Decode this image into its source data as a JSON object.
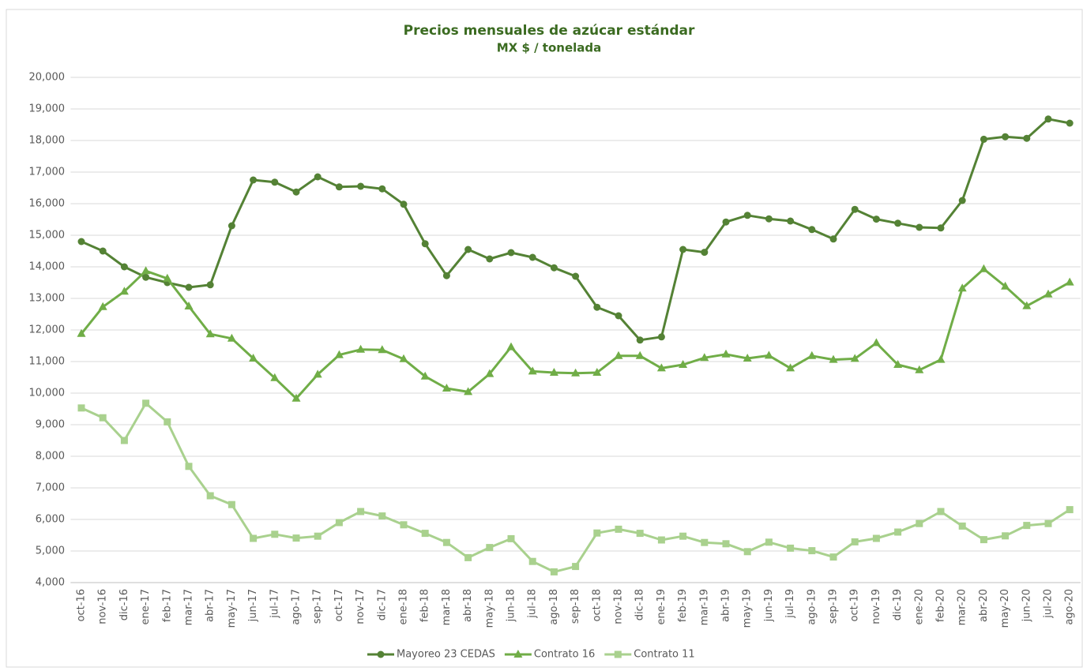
{
  "chart_data": {
    "type": "line",
    "title": "Precios mensuales de azúcar estándar",
    "subtitle": "MX $ / tonelada",
    "categories": [
      "oct-16",
      "nov-16",
      "dic-16",
      "ene-17",
      "feb-17",
      "mar-17",
      "abr-17",
      "may-17",
      "jun-17",
      "jul-17",
      "ago-17",
      "sep-17",
      "oct-17",
      "nov-17",
      "dic-17",
      "ene-18",
      "feb-18",
      "mar-18",
      "abr-18",
      "may-18",
      "jun-18",
      "jul-18",
      "ago-18",
      "sep-18",
      "oct-18",
      "nov-18",
      "dic-18",
      "ene-19",
      "feb-19",
      "mar-19",
      "abr-19",
      "may-19",
      "jun-19",
      "jul-19",
      "ago-19",
      "sep-19",
      "oct-19",
      "nov-19",
      "dic-19",
      "ene-20",
      "feb-20",
      "mar-20",
      "abr-20",
      "may-20",
      "jun-20",
      "jul-20",
      "ago-20"
    ],
    "series": [
      {
        "name": "Mayoreo 23 CEDAS",
        "color": "#548235",
        "marker": "circle",
        "values": [
          14800,
          14500,
          14000,
          13670,
          13500,
          13350,
          13430,
          15300,
          16750,
          16680,
          16370,
          16850,
          16530,
          16550,
          16470,
          15980,
          14730,
          13720,
          14550,
          14250,
          14450,
          14300,
          13970,
          13700,
          12720,
          12450,
          11680,
          11780,
          14550,
          14460,
          15420,
          15630,
          15520,
          15450,
          15180,
          14880,
          15820,
          15510,
          15380,
          15250,
          15230,
          16100,
          18040,
          18120,
          18070,
          18680,
          18550
        ]
      },
      {
        "name": "Contrato 16",
        "color": "#70ad47",
        "marker": "triangle",
        "values": [
          11880,
          12730,
          13220,
          13870,
          13630,
          12750,
          11870,
          11730,
          11100,
          10480,
          9830,
          10590,
          11210,
          11380,
          11370,
          11080,
          10530,
          10150,
          10040,
          10610,
          11460,
          10690,
          10650,
          10630,
          10650,
          11180,
          11180,
          10790,
          10900,
          11120,
          11230,
          11100,
          11190,
          10790,
          11180,
          11060,
          11090,
          11590,
          10900,
          10730,
          11060,
          13320,
          13930,
          13380,
          12760,
          13130,
          13510
        ]
      },
      {
        "name": "Contrato 11",
        "color": "#a9d18e",
        "marker": "square",
        "values": [
          9530,
          9220,
          8500,
          9680,
          9090,
          7680,
          6750,
          6470,
          5400,
          5530,
          5410,
          5470,
          5900,
          6250,
          6110,
          5830,
          5560,
          5270,
          4790,
          5110,
          5390,
          4670,
          4340,
          4510,
          5570,
          5690,
          5560,
          5350,
          5470,
          5270,
          5230,
          4980,
          5280,
          5090,
          5010,
          4810,
          5290,
          5400,
          5600,
          5870,
          6250,
          5790,
          5360,
          5480,
          5810,
          5870,
          6310
        ]
      }
    ],
    "ylim": [
      4000,
      20000
    ],
    "yticks": [
      {
        "value": 4000,
        "label": "4,000"
      },
      {
        "value": 5000,
        "label": "5,000"
      },
      {
        "value": 6000,
        "label": "6,000"
      },
      {
        "value": 7000,
        "label": "7,000"
      },
      {
        "value": 8000,
        "label": "8,000"
      },
      {
        "value": 9000,
        "label": "9,000"
      },
      {
        "value": 10000,
        "label": "10,000"
      },
      {
        "value": 11000,
        "label": "11,000"
      },
      {
        "value": 12000,
        "label": "12,000"
      },
      {
        "value": 13000,
        "label": "13,000"
      },
      {
        "value": 14000,
        "label": "14,000"
      },
      {
        "value": 15000,
        "label": "15,000"
      },
      {
        "value": 16000,
        "label": "16,000"
      },
      {
        "value": 17000,
        "label": "17,000"
      },
      {
        "value": 18000,
        "label": "18,000"
      },
      {
        "value": 19000,
        "label": "19,000"
      },
      {
        "value": 20000,
        "label": "20,000"
      }
    ],
    "grid": true,
    "legend": "bottom"
  }
}
